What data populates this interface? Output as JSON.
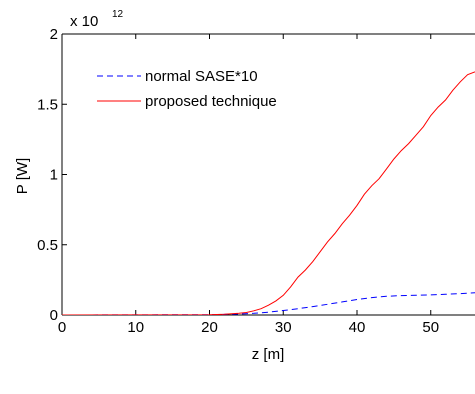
{
  "chart_data": {
    "type": "line",
    "xlabel": "z [m]",
    "ylabel": "P [W]",
    "y_multiplier": {
      "base": "x 10",
      "exponent": "12"
    },
    "xlim": [
      0,
      56
    ],
    "ylim": [
      0,
      2
    ],
    "x_ticks": [
      0,
      10,
      20,
      30,
      40,
      50
    ],
    "x_tick_labels": [
      "0",
      "10",
      "20",
      "30",
      "40",
      "50"
    ],
    "y_ticks": [
      0,
      0.5,
      1,
      1.5,
      2
    ],
    "y_tick_labels": [
      "0",
      "0.5",
      "1",
      "1.5",
      "2"
    ],
    "grid": false,
    "legend_position": "top-left",
    "series": [
      {
        "name": "normal SASE*10",
        "color": "#0000ff",
        "style": "dashed",
        "x": [
          0,
          20,
          22,
          24,
          26,
          28,
          30,
          32,
          34,
          36,
          38,
          40,
          42,
          44,
          46,
          48,
          50,
          52,
          54,
          56
        ],
        "y": [
          0,
          0.002,
          0.004,
          0.007,
          0.012,
          0.02,
          0.032,
          0.045,
          0.06,
          0.076,
          0.093,
          0.11,
          0.124,
          0.133,
          0.138,
          0.14,
          0.143,
          0.147,
          0.152,
          0.158
        ]
      },
      {
        "name": "proposed technique",
        "color": "#ff0000",
        "style": "solid",
        "x": [
          0,
          20,
          22,
          24,
          25,
          26,
          27,
          28,
          29,
          30,
          31,
          32,
          33,
          34,
          35,
          36,
          37,
          38,
          39,
          40,
          41,
          42,
          43,
          44,
          45,
          46,
          47,
          48,
          49,
          50,
          51,
          52,
          53,
          54,
          55,
          56
        ],
        "y": [
          0,
          0.002,
          0.005,
          0.012,
          0.018,
          0.03,
          0.045,
          0.07,
          0.1,
          0.14,
          0.2,
          0.27,
          0.32,
          0.38,
          0.45,
          0.52,
          0.58,
          0.65,
          0.71,
          0.78,
          0.86,
          0.92,
          0.97,
          1.04,
          1.11,
          1.17,
          1.22,
          1.28,
          1.34,
          1.42,
          1.48,
          1.53,
          1.6,
          1.66,
          1.71,
          1.73
        ]
      }
    ]
  }
}
